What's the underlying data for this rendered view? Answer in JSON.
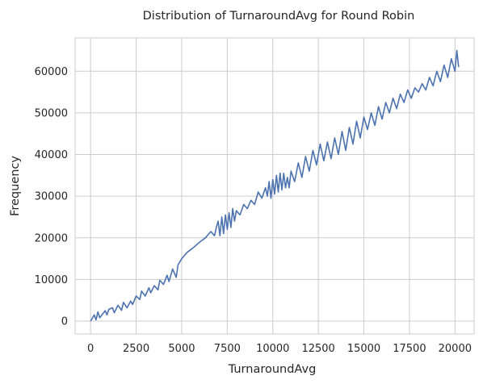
{
  "chart_data": {
    "type": "line",
    "title": "Distribution of TurnaroundAvg for Round Robin",
    "xlabel": "TurnaroundAvg",
    "ylabel": "Frequency",
    "xlim": [
      -850,
      21050
    ],
    "ylim": [
      -3100,
      68000
    ],
    "xticks": [
      0,
      2500,
      5000,
      7500,
      10000,
      12500,
      15000,
      17500,
      20000
    ],
    "yticks": [
      0,
      10000,
      20000,
      30000,
      40000,
      50000,
      60000
    ],
    "grid": true,
    "color": "#4c72b0",
    "series": [
      {
        "name": "",
        "x": [
          0,
          200,
          300,
          400,
          500,
          800,
          900,
          1000,
          1200,
          1300,
          1500,
          1700,
          1800,
          2000,
          2200,
          2300,
          2500,
          2700,
          2800,
          3000,
          3200,
          3300,
          3500,
          3700,
          3800,
          4000,
          4200,
          4300,
          4500,
          4700,
          4800,
          5000,
          5300,
          5600,
          6000,
          6300,
          6600,
          6800,
          6900,
          7000,
          7100,
          7200,
          7300,
          7400,
          7500,
          7600,
          7700,
          7800,
          7900,
          8000,
          8200,
          8400,
          8600,
          8800,
          9000,
          9200,
          9400,
          9600,
          9700,
          9800,
          9900,
          10000,
          10100,
          10200,
          10300,
          10400,
          10500,
          10600,
          10700,
          10800,
          10900,
          11000,
          11200,
          11400,
          11600,
          11800,
          12000,
          12200,
          12400,
          12600,
          12800,
          13000,
          13200,
          13400,
          13600,
          13800,
          14000,
          14200,
          14400,
          14600,
          14800,
          15000,
          15200,
          15400,
          15600,
          15800,
          16000,
          16200,
          16400,
          16600,
          16800,
          17000,
          17200,
          17400,
          17600,
          17800,
          18000,
          18200,
          18400,
          18600,
          18800,
          19000,
          19200,
          19400,
          19600,
          19800,
          20000,
          20100,
          20200
        ],
        "y": [
          0,
          1500,
          300,
          2200,
          800,
          2500,
          1500,
          2800,
          3200,
          2000,
          3800,
          2600,
          4500,
          3200,
          4800,
          4000,
          6000,
          5200,
          7200,
          6000,
          8000,
          6800,
          8500,
          7500,
          9800,
          8800,
          11000,
          9500,
          12500,
          10500,
          13500,
          15000,
          16500,
          17500,
          19000,
          20000,
          21500,
          20500,
          22500,
          24000,
          20500,
          25000,
          21000,
          25500,
          22000,
          26000,
          22500,
          27000,
          24000,
          26500,
          25500,
          28000,
          27000,
          29000,
          28000,
          31000,
          29500,
          32000,
          30000,
          33500,
          29500,
          34000,
          30500,
          35000,
          31000,
          35500,
          31500,
          35500,
          32000,
          34500,
          32000,
          36000,
          33500,
          38000,
          34500,
          39500,
          36000,
          41000,
          37500,
          42500,
          38500,
          43000,
          39000,
          44000,
          40000,
          45500,
          41000,
          46500,
          42500,
          48000,
          44000,
          49000,
          46000,
          50000,
          47000,
          51500,
          48500,
          52500,
          50000,
          53500,
          51000,
          54500,
          52500,
          55500,
          53500,
          56000,
          55000,
          57000,
          55500,
          58500,
          56500,
          60000,
          57500,
          61500,
          58500,
          63000,
          60000,
          65000,
          61000
        ]
      }
    ]
  }
}
